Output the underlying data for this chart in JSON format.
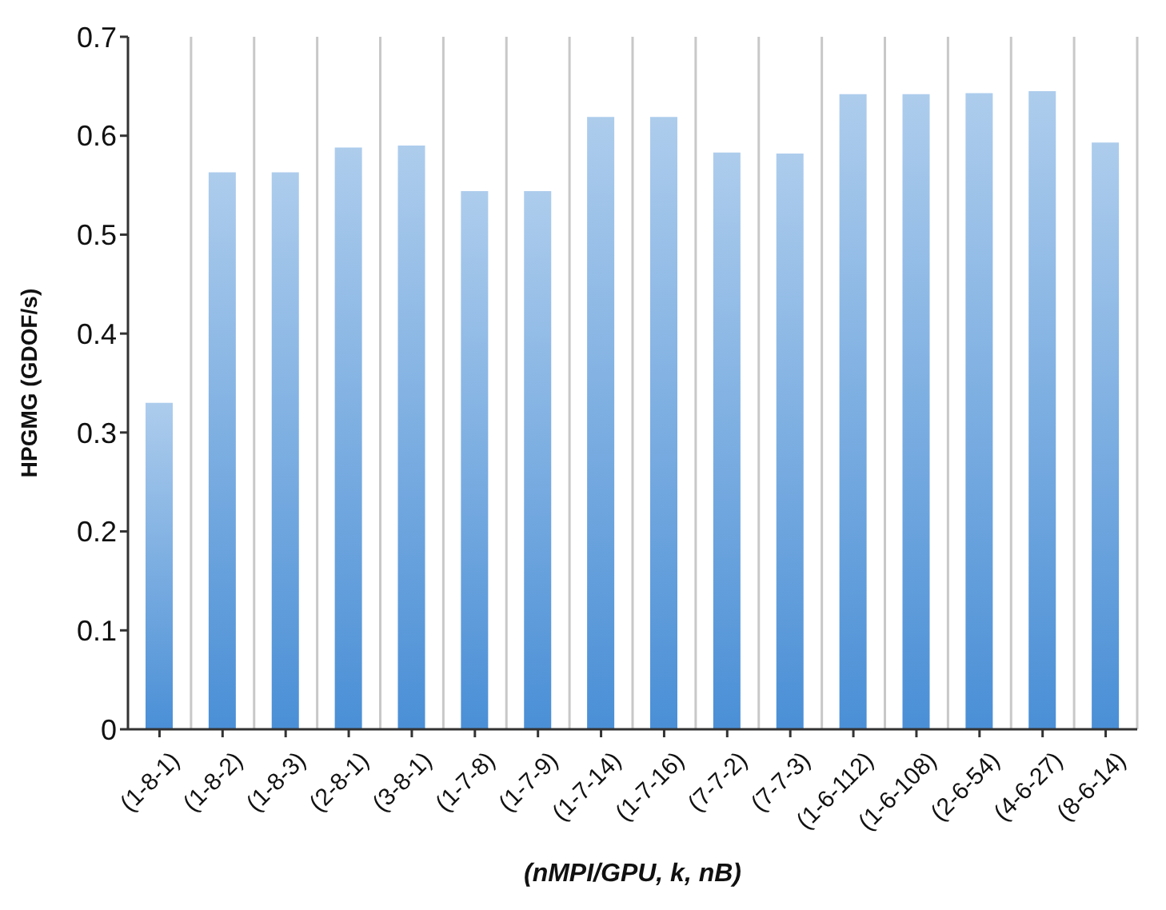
{
  "chart_data": {
    "type": "bar",
    "xlabel": "(nMPI/GPU, k, nB)",
    "ylabel": "HPGMG (GDOF/s)",
    "categories": [
      "(1-8-1)",
      "(1-8-2)",
      "(1-8-3)",
      "(2-8-1)",
      "(3-8-1)",
      "(1-7-8)",
      "(1-7-9)",
      "(1-7-14)",
      "(1-7-16)",
      "(7-7-2)",
      "(7-7-3)",
      "(1-6-112)",
      "(1-6-108)",
      "(2-6-54)",
      "(4-6-27)",
      "(8-6-14)"
    ],
    "values": [
      0.33,
      0.563,
      0.563,
      0.588,
      0.59,
      0.544,
      0.544,
      0.619,
      0.619,
      0.583,
      0.582,
      0.642,
      0.642,
      0.643,
      0.645,
      0.593
    ],
    "color": "#4a8fd6",
    "ylim": [
      0,
      0.7
    ],
    "yticks": [
      0,
      0.1,
      0.2,
      0.3,
      0.4,
      0.5,
      0.6,
      0.7
    ],
    "grid": "x",
    "legend": false
  }
}
